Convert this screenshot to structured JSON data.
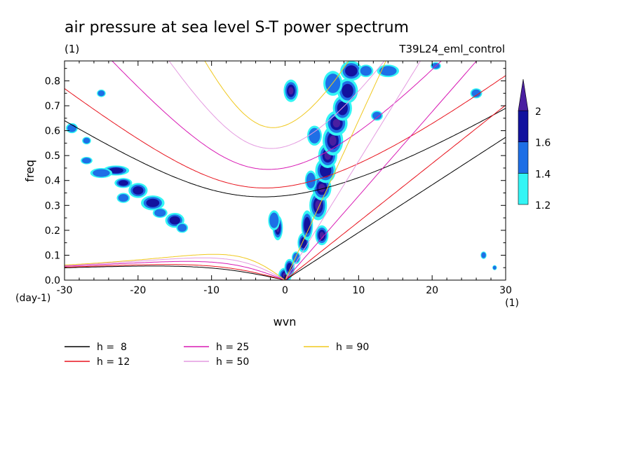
{
  "chart_data": {
    "type": "contour",
    "title": "air pressure at sea level S-T power spectrum",
    "units": "(1)",
    "experiment": "T39L24_eml_control",
    "xlabel": "wvn",
    "ylabel": "freq",
    "x_unit": "(1)",
    "y_unit": "(day-1)",
    "xlim": [
      -30,
      30
    ],
    "ylim": [
      0,
      0.88
    ],
    "xticks": [
      -30,
      -20,
      -10,
      0,
      10,
      20,
      30
    ],
    "xtick_labels": [
      "-30",
      "-20",
      "-10",
      "0",
      "10",
      "20",
      "30"
    ],
    "yticks": [
      0,
      0.1,
      0.2,
      0.3,
      0.4,
      0.5,
      0.6,
      0.7,
      0.8
    ],
    "ytick_labels": [
      "0.0",
      "0.1",
      "0.2",
      "0.3",
      "0.4",
      "0.5",
      "0.6",
      "0.7",
      "0.8"
    ],
    "colorbar": {
      "levels": [
        1.2,
        1.4,
        1.6,
        2
      ],
      "labels": [
        "1.2",
        "1.4",
        "1.6",
        "2"
      ],
      "colors": [
        "#33f5f5",
        "#1e6fe6",
        "#12129e",
        "#4a1fa0"
      ]
    },
    "curves": [
      {
        "label": "h =  8",
        "h": 8,
        "color": "#000000"
      },
      {
        "label": "h = 12",
        "h": 12,
        "color": "#e8141e"
      },
      {
        "label": "h = 25",
        "h": 25,
        "color": "#d81ab4"
      },
      {
        "label": "h = 50",
        "h": 50,
        "color": "#e49ae0"
      },
      {
        "label": "h = 90",
        "h": 90,
        "color": "#f0c81e"
      }
    ],
    "blobs": [
      {
        "x": 0.0,
        "y": 0.02,
        "rx": 0.9,
        "ry": 0.03,
        "level": 3
      },
      {
        "x": 0.6,
        "y": 0.05,
        "rx": 0.7,
        "ry": 0.035,
        "level": 2
      },
      {
        "x": 1.5,
        "y": 0.09,
        "rx": 0.6,
        "ry": 0.025,
        "level": 1
      },
      {
        "x": 2.5,
        "y": 0.15,
        "rx": 0.8,
        "ry": 0.04,
        "level": 2
      },
      {
        "x": -1.0,
        "y": 0.21,
        "rx": 0.7,
        "ry": 0.05,
        "level": 3
      },
      {
        "x": -1.5,
        "y": 0.24,
        "rx": 0.8,
        "ry": 0.04,
        "level": 1
      },
      {
        "x": 3.0,
        "y": 0.22,
        "rx": 0.8,
        "ry": 0.06,
        "level": 2
      },
      {
        "x": 5.0,
        "y": 0.18,
        "rx": 0.9,
        "ry": 0.04,
        "level": 3
      },
      {
        "x": 4.5,
        "y": 0.3,
        "rx": 1.2,
        "ry": 0.06,
        "level": 3
      },
      {
        "x": 5.0,
        "y": 0.37,
        "rx": 1.3,
        "ry": 0.05,
        "level": 3
      },
      {
        "x": 5.5,
        "y": 0.44,
        "rx": 1.4,
        "ry": 0.05,
        "level": 2
      },
      {
        "x": 5.8,
        "y": 0.5,
        "rx": 1.3,
        "ry": 0.05,
        "level": 3
      },
      {
        "x": 6.5,
        "y": 0.56,
        "rx": 1.4,
        "ry": 0.06,
        "level": 3
      },
      {
        "x": 7.0,
        "y": 0.63,
        "rx": 1.5,
        "ry": 0.05,
        "level": 3
      },
      {
        "x": 7.8,
        "y": 0.69,
        "rx": 1.3,
        "ry": 0.05,
        "level": 2
      },
      {
        "x": 8.5,
        "y": 0.76,
        "rx": 1.4,
        "ry": 0.05,
        "level": 2
      },
      {
        "x": 9.0,
        "y": 0.84,
        "rx": 1.5,
        "ry": 0.04,
        "level": 2
      },
      {
        "x": 4.0,
        "y": 0.58,
        "rx": 1.0,
        "ry": 0.04,
        "level": 1
      },
      {
        "x": 3.5,
        "y": 0.4,
        "rx": 0.8,
        "ry": 0.04,
        "level": 1
      },
      {
        "x": 0.8,
        "y": 0.76,
        "rx": 1.0,
        "ry": 0.045,
        "level": 3
      },
      {
        "x": 6.5,
        "y": 0.79,
        "rx": 1.3,
        "ry": 0.05,
        "level": 1
      },
      {
        "x": 11.0,
        "y": 0.84,
        "rx": 1.0,
        "ry": 0.025,
        "level": 1
      },
      {
        "x": 14.0,
        "y": 0.84,
        "rx": 1.5,
        "ry": 0.025,
        "level": 1
      },
      {
        "x": -23.0,
        "y": 0.44,
        "rx": 1.8,
        "ry": 0.02,
        "level": 2
      },
      {
        "x": -25.0,
        "y": 0.43,
        "rx": 1.5,
        "ry": 0.02,
        "level": 1
      },
      {
        "x": -22.0,
        "y": 0.39,
        "rx": 1.2,
        "ry": 0.02,
        "level": 2
      },
      {
        "x": -20.0,
        "y": 0.36,
        "rx": 1.3,
        "ry": 0.03,
        "level": 2
      },
      {
        "x": -18.0,
        "y": 0.31,
        "rx": 1.6,
        "ry": 0.03,
        "level": 2
      },
      {
        "x": -15.0,
        "y": 0.24,
        "rx": 1.3,
        "ry": 0.03,
        "level": 2
      },
      {
        "x": -14.0,
        "y": 0.21,
        "rx": 0.8,
        "ry": 0.02,
        "level": 1
      },
      {
        "x": -17.0,
        "y": 0.27,
        "rx": 1.0,
        "ry": 0.02,
        "level": 1
      },
      {
        "x": -22.0,
        "y": 0.33,
        "rx": 0.9,
        "ry": 0.02,
        "level": 1
      },
      {
        "x": -27.0,
        "y": 0.48,
        "rx": 0.8,
        "ry": 0.015,
        "level": 1
      },
      {
        "x": -25.0,
        "y": 0.75,
        "rx": 0.6,
        "ry": 0.015,
        "level": 1
      },
      {
        "x": -29.0,
        "y": 0.61,
        "rx": 0.8,
        "ry": 0.02,
        "level": 1
      },
      {
        "x": -27.0,
        "y": 0.56,
        "rx": 0.6,
        "ry": 0.015,
        "level": 1
      },
      {
        "x": 26.0,
        "y": 0.75,
        "rx": 0.8,
        "ry": 0.02,
        "level": 1
      },
      {
        "x": 27.0,
        "y": 0.1,
        "rx": 0.4,
        "ry": 0.015,
        "level": 1
      },
      {
        "x": 28.5,
        "y": 0.05,
        "rx": 0.3,
        "ry": 0.01,
        "level": 1
      },
      {
        "x": 12.5,
        "y": 0.66,
        "rx": 0.8,
        "ry": 0.02,
        "level": 1
      },
      {
        "x": 20.5,
        "y": 0.86,
        "rx": 0.7,
        "ry": 0.015,
        "level": 1
      }
    ]
  },
  "legend_columns": [
    [
      0,
      1
    ],
    [
      2,
      3
    ],
    [
      4
    ]
  ]
}
